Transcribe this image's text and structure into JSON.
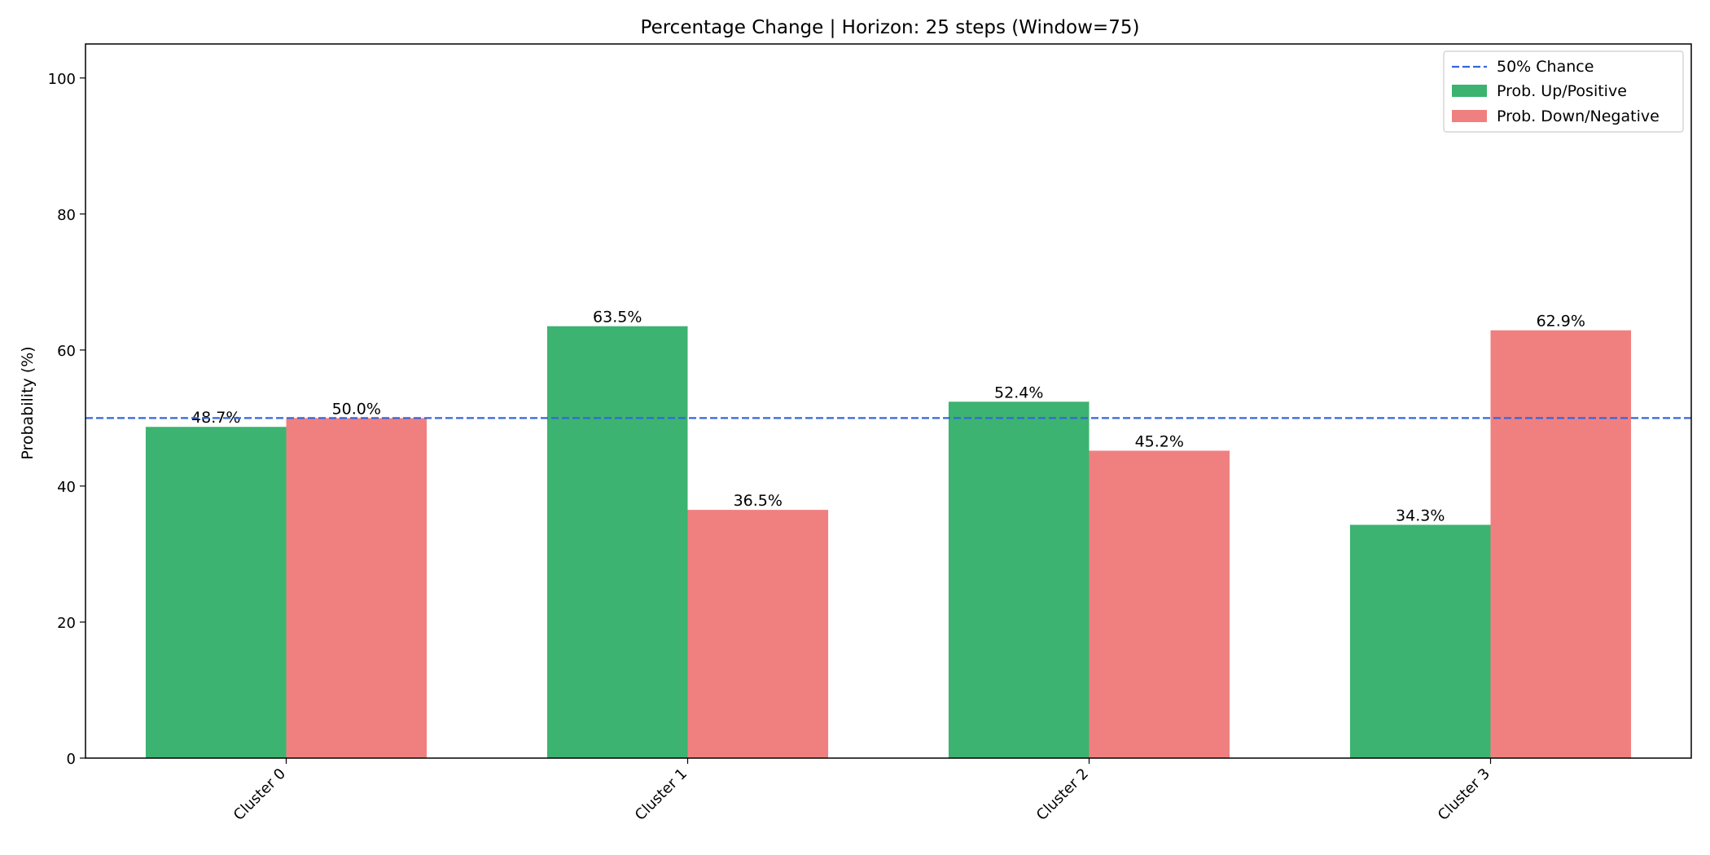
{
  "chart_data": {
    "type": "bar",
    "title": "Percentage Change | Horizon: 25 steps (Window=75)",
    "xlabel": "",
    "ylabel": "Probability (%)",
    "ylim": [
      0,
      105
    ],
    "yticks": [
      0,
      20,
      40,
      60,
      80,
      100
    ],
    "categories": [
      "Cluster 0",
      "Cluster 1",
      "Cluster 2",
      "Cluster 3"
    ],
    "series": [
      {
        "name": "Prob. Up/Positive",
        "color": "#3cb371",
        "values": [
          48.7,
          63.5,
          52.4,
          34.3
        ],
        "labels": [
          "48.7%",
          "63.5%",
          "52.4%",
          "34.3%"
        ]
      },
      {
        "name": "Prob. Down/Negative",
        "color": "#f08080",
        "values": [
          50.0,
          36.5,
          45.2,
          62.9
        ],
        "labels": [
          "50.0%",
          "36.5%",
          "45.2%",
          "62.9%"
        ]
      }
    ],
    "reference_line": {
      "name": "50% Chance",
      "value": 50,
      "color": "#3366dd",
      "style": "dashed"
    },
    "legend_position": "top-right",
    "grid": false
  }
}
